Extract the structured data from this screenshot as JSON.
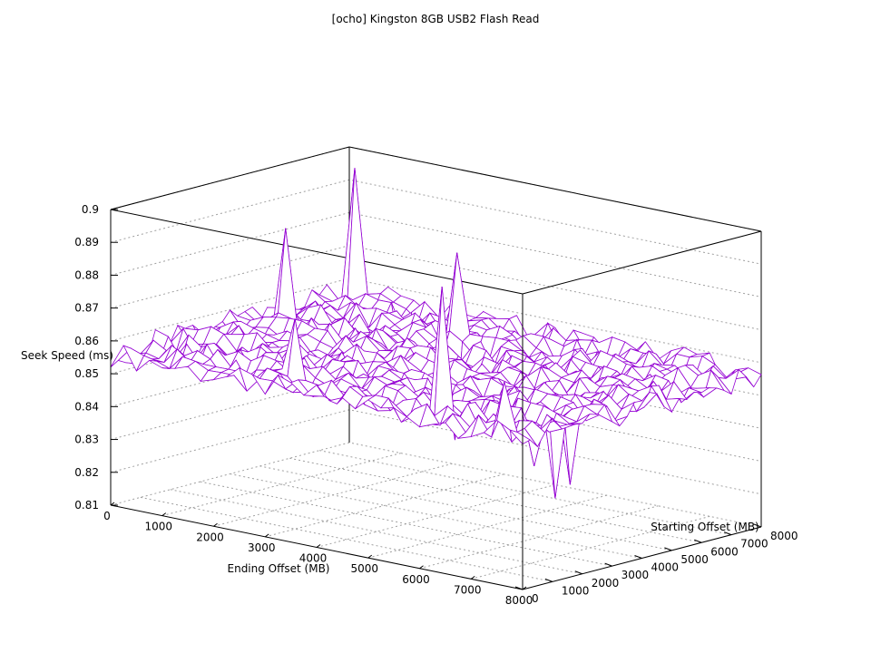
{
  "chart_data": {
    "type": "surface",
    "title": "[ocho] Kingston 8GB USB2 Flash Read",
    "xlabel": "Ending Offset (MB)",
    "ylabel": "Starting Offset (MB)",
    "zlabel": "Seek Speed (ms)",
    "xlim": [
      0,
      8000
    ],
    "ylim": [
      0,
      8000
    ],
    "zlim": [
      0.81,
      0.9
    ],
    "x_ticks": [
      "0",
      "1000",
      "2000",
      "3000",
      "4000",
      "5000",
      "6000",
      "7000",
      "8000"
    ],
    "y_ticks": [
      "0",
      "1000",
      "2000",
      "3000",
      "4000",
      "5000",
      "6000",
      "7000",
      "8000"
    ],
    "z_ticks": [
      "0.81",
      "0.82",
      "0.83",
      "0.84",
      "0.85",
      "0.86",
      "0.87",
      "0.88",
      "0.89",
      "0.9"
    ],
    "grid_points": 33,
    "base_level": 0.856,
    "noise_amplitude": 0.004,
    "spikes": [
      {
        "x": 250,
        "y": 7700,
        "z": 0.895
      },
      {
        "x": 500,
        "y": 5000,
        "z": 0.884
      },
      {
        "x": 3250,
        "y": 6000,
        "z": 0.883
      },
      {
        "x": 6000,
        "y": 750,
        "z": 0.894
      },
      {
        "x": 3000,
        "y": 1000,
        "z": 0.874
      },
      {
        "x": 7500,
        "y": 250,
        "z": 0.871
      },
      {
        "x": 1500,
        "y": 7250,
        "z": 0.836
      },
      {
        "x": 3500,
        "y": 5500,
        "z": 0.828
      },
      {
        "x": 6750,
        "y": 3750,
        "z": 0.829
      },
      {
        "x": 6750,
        "y": 3250,
        "z": 0.826
      },
      {
        "x": 7500,
        "y": 1250,
        "z": 0.843
      },
      {
        "x": 7250,
        "y": 2250,
        "z": 0.855
      }
    ],
    "colors": {
      "surface_top": "#9400d3",
      "surface_bottom": "#009e73"
    }
  }
}
